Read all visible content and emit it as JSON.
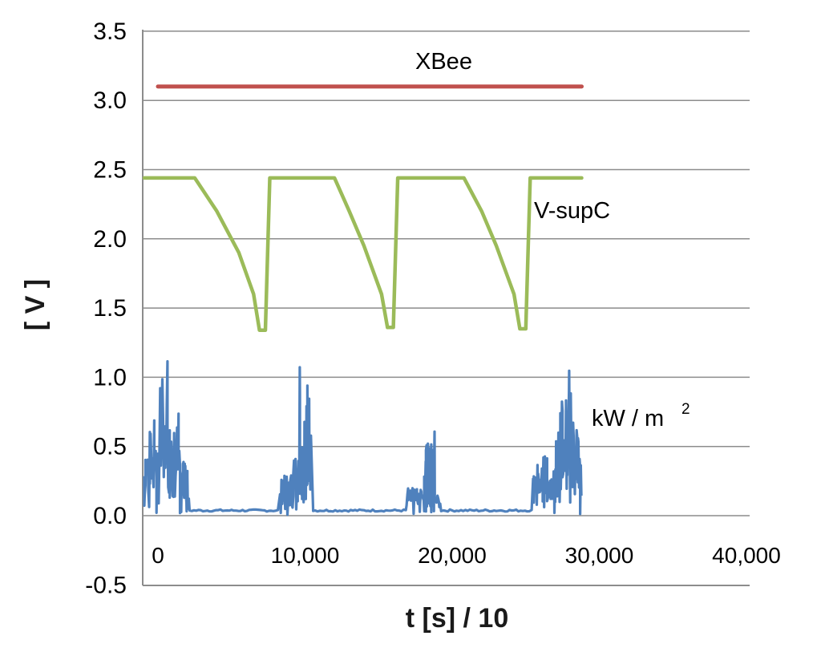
{
  "chart_data": {
    "type": "line",
    "title": "",
    "xlabel": "t [s] / 10",
    "ylabel": "[ V ]",
    "xlim": [
      0,
      40000
    ],
    "ylim": [
      -0.5,
      3.5
    ],
    "grid": "horizontal",
    "x_ticks": [
      {
        "value": 0,
        "label": "0"
      },
      {
        "value": 10000,
        "label": "10,000"
      },
      {
        "value": 20000,
        "label": "20,000"
      },
      {
        "value": 30000,
        "label": "30,000"
      },
      {
        "value": 40000,
        "label": "40,000"
      }
    ],
    "y_ticks": [
      {
        "value": -0.5,
        "label": "-0.5"
      },
      {
        "value": 0.0,
        "label": "0.0"
      },
      {
        "value": 0.5,
        "label": "0.5"
      },
      {
        "value": 1.0,
        "label": "1.0"
      },
      {
        "value": 1.5,
        "label": "1.5"
      },
      {
        "value": 2.0,
        "label": "2.0"
      },
      {
        "value": 2.5,
        "label": "2.5"
      },
      {
        "value": 3.0,
        "label": "3.0"
      },
      {
        "value": 3.5,
        "label": "3.5"
      }
    ],
    "series": [
      {
        "name": "XBee",
        "color": "#c0504d",
        "x": [
          0,
          28800
        ],
        "y": [
          3.1,
          3.1
        ]
      },
      {
        "name": "V-supC",
        "color": "#9bbb59",
        "x": [
          -1000,
          2500,
          4000,
          5500,
          6500,
          6900,
          7300,
          7600,
          12000,
          13000,
          14000,
          15200,
          15600,
          16000,
          16300,
          20800,
          22000,
          23000,
          24200,
          24600,
          25000,
          25300,
          28800
        ],
        "y": [
          2.44,
          2.44,
          2.2,
          1.9,
          1.6,
          1.34,
          1.34,
          2.44,
          2.44,
          2.2,
          1.95,
          1.6,
          1.36,
          1.36,
          2.44,
          2.44,
          2.2,
          1.95,
          1.6,
          1.35,
          1.35,
          2.44,
          2.44
        ]
      },
      {
        "name": "kW / m²",
        "label_base": "kW / m",
        "label_sup": "2",
        "color": "#4f81bd",
        "bursts": [
          {
            "start": -1000,
            "end": 2000,
            "step": 100,
            "base": 0.3,
            "amp": 0.92,
            "falloff": 0.65
          },
          {
            "start": 1500,
            "end": 2100,
            "step": 80,
            "base": 0.05,
            "amp": 0.4,
            "falloff": 0.3
          },
          {
            "start": 8300,
            "end": 10300,
            "step": 100,
            "base": 0.1,
            "amp": 0.35,
            "falloff": 0.2
          },
          {
            "start": 9600,
            "end": 10400,
            "step": 80,
            "base": 0.3,
            "amp": 0.95,
            "falloff": 0.1
          },
          {
            "start": 16900,
            "end": 19200,
            "step": 120,
            "base": 0.08,
            "amp": 0.15,
            "falloff": 0.1
          },
          {
            "start": 18100,
            "end": 18800,
            "step": 80,
            "base": 0.1,
            "amp": 0.58,
            "falloff": 0.1
          },
          {
            "start": 25500,
            "end": 27000,
            "step": 100,
            "base": 0.1,
            "amp": 0.35,
            "falloff": 0.15
          },
          {
            "start": 26900,
            "end": 28800,
            "step": 80,
            "base": 0.3,
            "amp": 0.85,
            "falloff": 0.6
          }
        ],
        "baseline": 0.03
      }
    ]
  }
}
